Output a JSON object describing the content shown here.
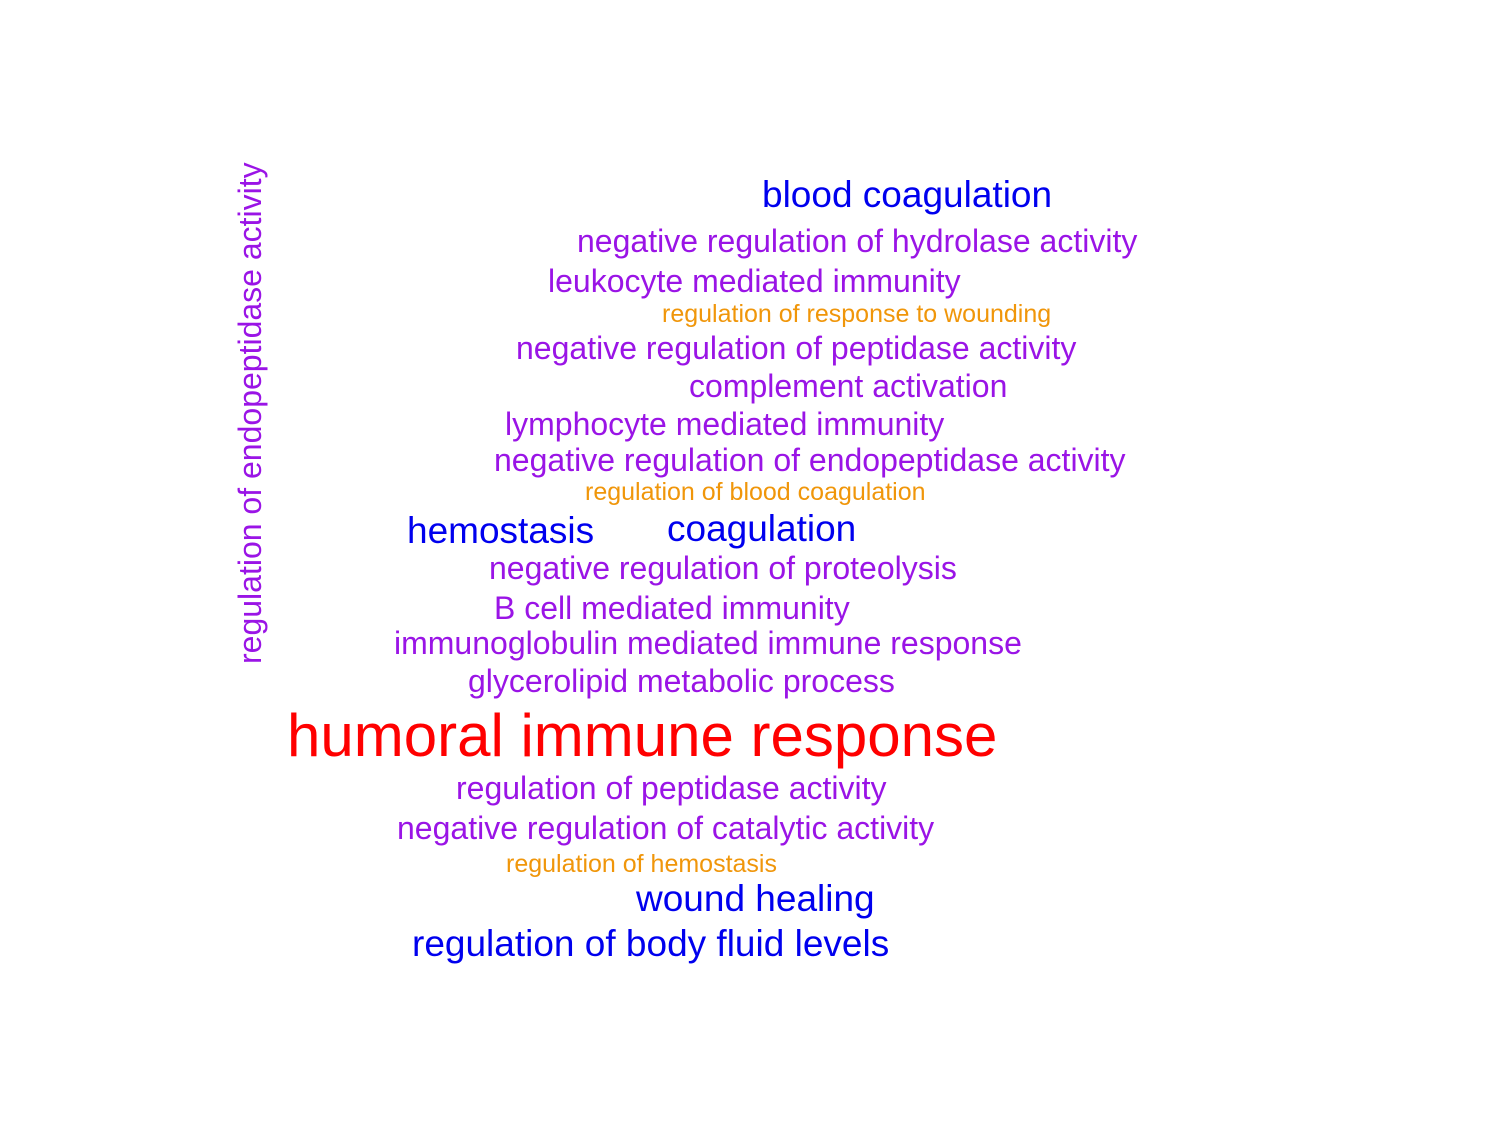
{
  "palette": {
    "red": "#ff0000",
    "blue": "#0000ee",
    "purple": "#9a14e6",
    "orange": "#f0960a"
  },
  "words": [
    {
      "text": "regulation of endopeptidase activity",
      "color": "purple",
      "weight": 2
    },
    {
      "text": "blood coagulation",
      "color": "blue",
      "weight": 3
    },
    {
      "text": "negative regulation of hydrolase activity",
      "color": "purple",
      "weight": 2
    },
    {
      "text": "leukocyte mediated immunity",
      "color": "purple",
      "weight": 2
    },
    {
      "text": "regulation of response to wounding",
      "color": "orange",
      "weight": 1
    },
    {
      "text": "negative regulation of peptidase activity",
      "color": "purple",
      "weight": 2
    },
    {
      "text": "complement activation",
      "color": "purple",
      "weight": 2
    },
    {
      "text": "lymphocyte mediated immunity",
      "color": "purple",
      "weight": 2
    },
    {
      "text": "negative regulation of endopeptidase activity",
      "color": "purple",
      "weight": 2
    },
    {
      "text": "regulation of blood coagulation",
      "color": "orange",
      "weight": 1
    },
    {
      "text": "hemostasis",
      "color": "blue",
      "weight": 3
    },
    {
      "text": "coagulation",
      "color": "blue",
      "weight": 3
    },
    {
      "text": "negative regulation of proteolysis",
      "color": "purple",
      "weight": 2
    },
    {
      "text": "B cell mediated immunity",
      "color": "purple",
      "weight": 2
    },
    {
      "text": "immunoglobulin mediated immune response",
      "color": "purple",
      "weight": 2
    },
    {
      "text": "glycerolipid metabolic process",
      "color": "purple",
      "weight": 2
    },
    {
      "text": "humoral immune response",
      "color": "red",
      "weight": 5
    },
    {
      "text": "regulation of peptidase activity",
      "color": "purple",
      "weight": 2
    },
    {
      "text": "negative regulation of catalytic activity",
      "color": "purple",
      "weight": 2
    },
    {
      "text": "regulation of hemostasis",
      "color": "orange",
      "weight": 1
    },
    {
      "text": "wound healing",
      "color": "blue",
      "weight": 3
    },
    {
      "text": "regulation of body fluid levels",
      "color": "blue",
      "weight": 3
    }
  ]
}
